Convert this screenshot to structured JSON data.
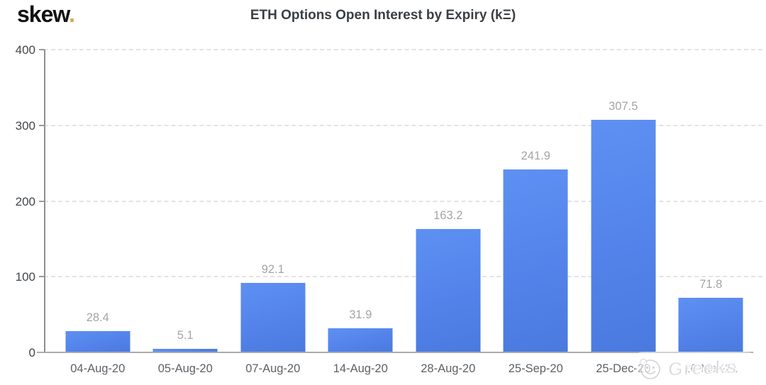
{
  "brand": {
    "logo_text": "skew",
    "logo_dot": "."
  },
  "header": {
    "title": "ETH Options Open Interest by Expiry (kΞ)"
  },
  "watermark": {
    "label": "Greeks",
    "icon": "smiley-icon"
  },
  "chart_data": {
    "type": "bar",
    "title": "ETH Options Open Interest by Expiry (kΞ)",
    "categories": [
      "04-Aug-20",
      "05-Aug-20",
      "07-Aug-20",
      "14-Aug-20",
      "28-Aug-20",
      "25-Sep-20",
      "25-Dec-20",
      "26-Mar-21"
    ],
    "values": [
      28.4,
      5.1,
      92.1,
      31.9,
      163.2,
      241.9,
      307.5,
      71.8
    ],
    "value_labels": [
      "28.4",
      "5.1",
      "92.1",
      "31.9",
      "163.2",
      "241.9",
      "307.5",
      "71.8"
    ],
    "xlabel": "",
    "ylabel": "",
    "ylim": [
      0,
      400
    ],
    "yticks": [
      0,
      100,
      200,
      300,
      400
    ],
    "grid": "horizontal-dashed",
    "legend": "none",
    "bar_color": "#5383ea",
    "bar_gradient_top": "#5e90f2",
    "bar_gradient_bottom": "#4a7ade",
    "value_label_color": "#a2a4a8",
    "axis_color": "#8f8f8f",
    "grid_color": "#e3e3e3",
    "accent_color": "#d2a54a"
  }
}
